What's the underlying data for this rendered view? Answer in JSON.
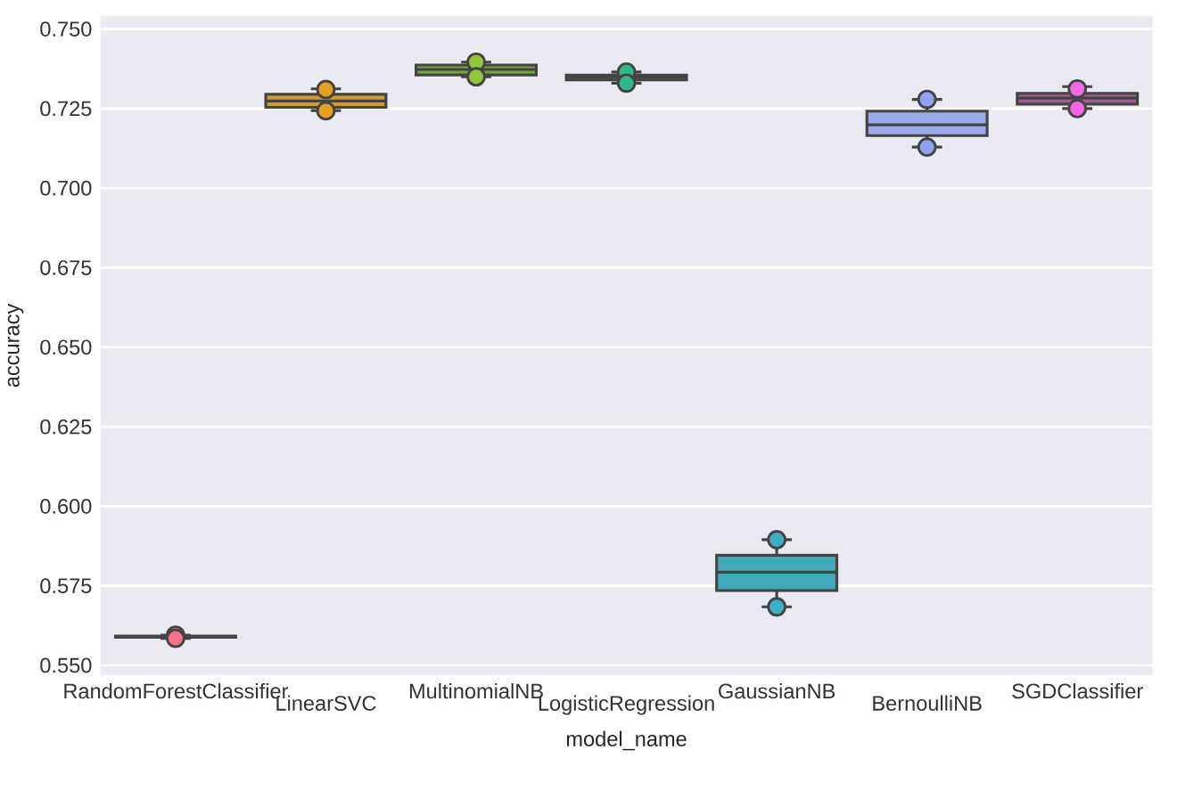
{
  "chart_data": {
    "type": "box",
    "xlabel": "model_name",
    "ylabel": "accuracy",
    "categories": [
      "RandomForestClassifier",
      "LinearSVC",
      "MultinomialNB",
      "LogisticRegression",
      "GaussianNB",
      "BernoulliNB",
      "SGDClassifier"
    ],
    "ylim": [
      0.547,
      0.754
    ],
    "yticks": [
      {
        "value": 0.55,
        "label": "0.550"
      },
      {
        "value": 0.575,
        "label": "0.575"
      },
      {
        "value": 0.6,
        "label": "0.600"
      },
      {
        "value": 0.625,
        "label": "0.625"
      },
      {
        "value": 0.65,
        "label": "0.650"
      },
      {
        "value": 0.675,
        "label": "0.675"
      },
      {
        "value": 0.7,
        "label": "0.700"
      },
      {
        "value": 0.725,
        "label": "0.725"
      },
      {
        "value": 0.75,
        "label": "0.750"
      }
    ],
    "grid": "y",
    "series": [
      {
        "type": "box",
        "colors": [
          "#e07b8a",
          "#d39a2c",
          "#78a63c",
          "#3aa988",
          "#41a8b9",
          "#9aa9ea",
          "#a0608f"
        ],
        "boxes": [
          {
            "low": 0.5585,
            "q1": 0.5588,
            "median": 0.559,
            "q3": 0.5592,
            "high": 0.5595
          },
          {
            "low": 0.7244,
            "q1": 0.7254,
            "median": 0.7274,
            "q3": 0.7295,
            "high": 0.7312
          },
          {
            "low": 0.735,
            "q1": 0.7356,
            "median": 0.7373,
            "q3": 0.7387,
            "high": 0.7396
          },
          {
            "low": 0.733,
            "q1": 0.734,
            "median": 0.7348,
            "q3": 0.7355,
            "high": 0.7365
          },
          {
            "low": 0.5684,
            "q1": 0.5735,
            "median": 0.5793,
            "q3": 0.5846,
            "high": 0.5895
          },
          {
            "low": 0.7129,
            "q1": 0.7165,
            "median": 0.7199,
            "q3": 0.7242,
            "high": 0.7279
          },
          {
            "low": 0.725,
            "q1": 0.7264,
            "median": 0.7283,
            "q3": 0.7298,
            "high": 0.7319
          }
        ]
      },
      {
        "type": "scatter",
        "marker": "circle",
        "x": [
          "RandomForestClassifier",
          "RandomForestClassifier",
          "LinearSVC",
          "LinearSVC",
          "MultinomialNB",
          "MultinomialNB",
          "LogisticRegression",
          "LogisticRegression",
          "GaussianNB",
          "GaussianNB",
          "BernoulliNB",
          "BernoulliNB",
          "SGDClassifier",
          "SGDClassifier"
        ],
        "values": [
          0.5595,
          0.5585,
          0.731,
          0.7243,
          0.7396,
          0.735,
          0.7365,
          0.733,
          0.5895,
          0.5684,
          0.7279,
          0.7129,
          0.7312,
          0.725
        ],
        "colors": [
          "#f77189",
          "#f77189",
          "#e5a021",
          "#e5a021",
          "#8fc63a",
          "#8fc63a",
          "#33b889",
          "#33b889",
          "#3ab0c6",
          "#3ab0c6",
          "#8fa3f0",
          "#8fa3f0",
          "#f667e6",
          "#f667e6"
        ]
      }
    ]
  }
}
